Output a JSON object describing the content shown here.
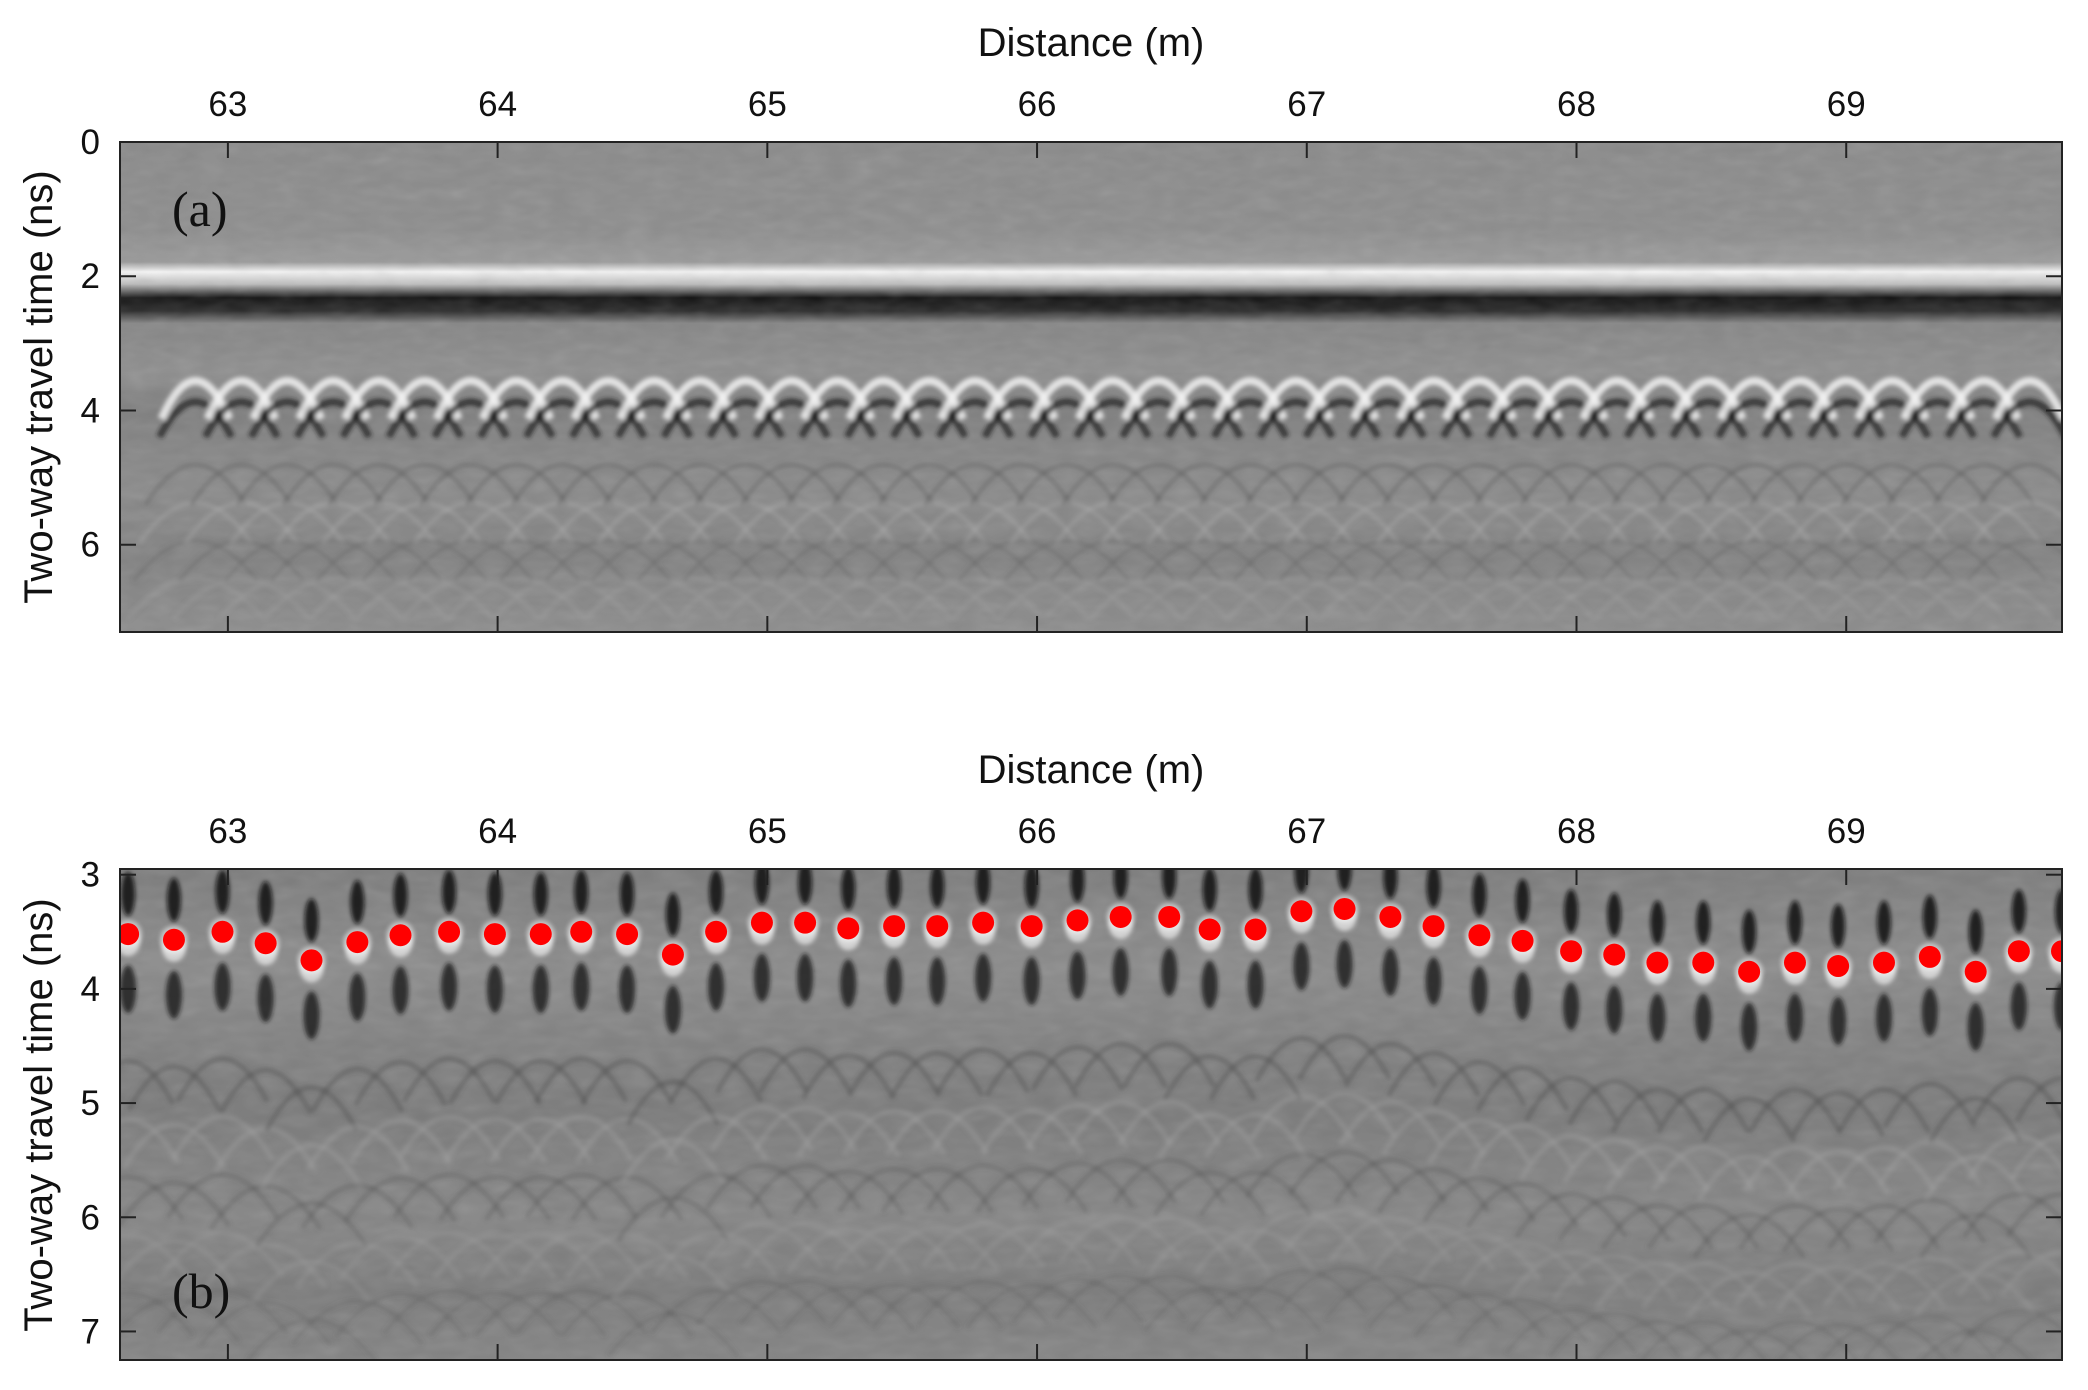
{
  "chart_data": [
    {
      "type": "heatmap",
      "panel_label": "(a)",
      "xlabel": "Distance (m)",
      "ylabel": "Two-way travel time (ns)",
      "xlim": [
        62.6,
        69.8
      ],
      "ylim": [
        0,
        7.3
      ],
      "y_reversed": true,
      "x_axis_position": "top",
      "xticks": [
        63,
        64,
        65,
        66,
        67,
        68,
        69
      ],
      "yticks": [
        0,
        2,
        4,
        6
      ],
      "colormap": "grayscale",
      "features": {
        "direct_wave_white_ns": 2.0,
        "direct_wave_black_ns": 2.5,
        "hyperbola_apex_ns": 3.5,
        "hyperbola_x": [
          62.88,
          63.05,
          63.22,
          63.39,
          63.56,
          63.73,
          63.9,
          64.07,
          64.24,
          64.41,
          64.58,
          64.75,
          64.92,
          65.09,
          65.26,
          65.43,
          65.6,
          65.77,
          65.94,
          66.11,
          66.28,
          66.45,
          66.62,
          66.79,
          66.96,
          67.13,
          67.3,
          67.47,
          67.64,
          67.81,
          67.98,
          68.15,
          68.32,
          68.49,
          68.66,
          68.83,
          69.0,
          69.17,
          69.34,
          69.51,
          69.68
        ]
      }
    },
    {
      "type": "heatmap",
      "panel_label": "(b)",
      "xlabel": "Distance (m)",
      "ylabel": "Two-way travel time (ns)",
      "xlim": [
        62.6,
        69.8
      ],
      "ylim": [
        2.95,
        7.25
      ],
      "y_reversed": true,
      "x_axis_position": "top",
      "xticks": [
        63,
        64,
        65,
        66,
        67,
        68,
        69
      ],
      "yticks": [
        3,
        4,
        5,
        6,
        7
      ],
      "colormap": "grayscale",
      "marker_color": "#ff0000",
      "series": [
        {
          "x": [
            62.63,
            62.8,
            62.98,
            63.14,
            63.31,
            63.48,
            63.64,
            63.82,
            63.99,
            64.16,
            64.31,
            64.48,
            64.65,
            64.81,
            64.98,
            65.14,
            65.3,
            65.47,
            65.63,
            65.8,
            65.98,
            66.15,
            66.31,
            66.49,
            66.64,
            66.81,
            66.98,
            67.14,
            67.31,
            67.47,
            67.64,
            67.8,
            67.98,
            68.14,
            68.3,
            68.47,
            68.64,
            68.81,
            68.97,
            69.14,
            69.31,
            69.48,
            69.64,
            69.8
          ],
          "y": [
            3.52,
            3.57,
            3.5,
            3.6,
            3.75,
            3.59,
            3.53,
            3.5,
            3.52,
            3.52,
            3.5,
            3.52,
            3.7,
            3.5,
            3.42,
            3.42,
            3.47,
            3.45,
            3.45,
            3.42,
            3.45,
            3.4,
            3.37,
            3.37,
            3.48,
            3.48,
            3.32,
            3.3,
            3.37,
            3.45,
            3.53,
            3.58,
            3.67,
            3.7,
            3.77,
            3.77,
            3.85,
            3.77,
            3.8,
            3.77,
            3.72,
            3.85,
            3.67,
            3.67
          ]
        }
      ]
    }
  ]
}
